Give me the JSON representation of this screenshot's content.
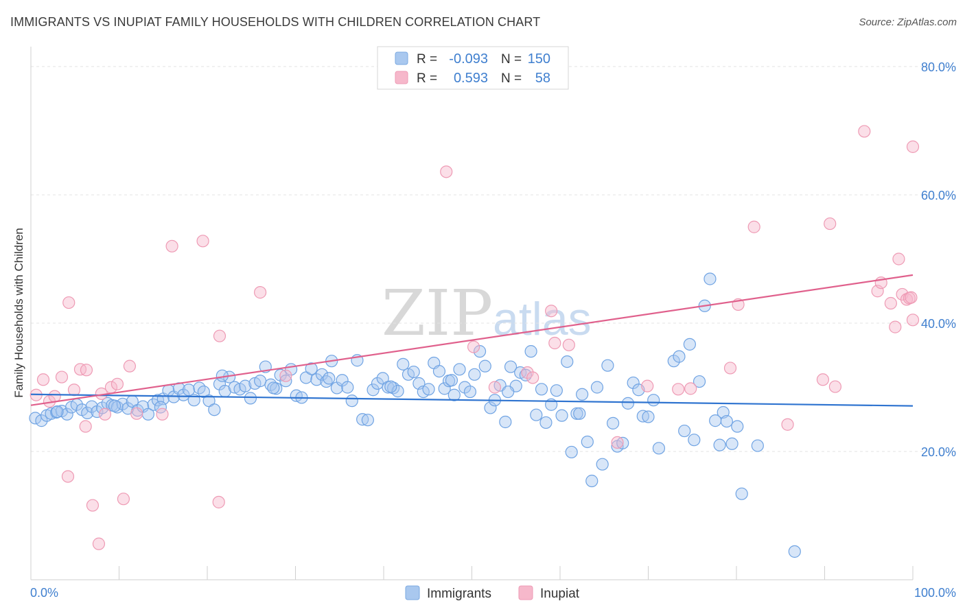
{
  "header": {
    "title": "IMMIGRANTS VS INUPIAT FAMILY HOUSEHOLDS WITH CHILDREN CORRELATION CHART",
    "source": "Source: ZipAtlas.com"
  },
  "watermark": {
    "zip": "ZIP",
    "atlas": "atlas"
  },
  "legend": {
    "rows": [
      {
        "r_label": "R =",
        "r_value": "-0.093",
        "n_label": "N =",
        "n_value": "150",
        "color": "#a9c8ef"
      },
      {
        "r_label": "R =",
        "r_value": "0.593",
        "n_label": "N =",
        "n_value": "58",
        "color": "#f6b8cb"
      }
    ]
  },
  "bottom_legend": [
    {
      "label": "Immigrants",
      "color": "#a9c8ef"
    },
    {
      "label": "Inupiat",
      "color": "#f6b8cb"
    }
  ],
  "chart_data": {
    "type": "scatter",
    "title": "IMMIGRANTS VS INUPIAT FAMILY HOUSEHOLDS WITH CHILDREN CORRELATION CHART",
    "xlabel": "",
    "ylabel": "Family Households with Children",
    "xlim": [
      0,
      100
    ],
    "ylim": [
      0,
      80
    ],
    "x_tick_labels": [
      "0.0%",
      "100.0%"
    ],
    "y_ticks": [
      20,
      40,
      60,
      80
    ],
    "y_tick_labels": [
      "20.0%",
      "40.0%",
      "60.0%",
      "80.0%"
    ],
    "grid": true,
    "legend_position": "top-center",
    "series": [
      {
        "name": "Immigrants",
        "color": "#6fa3e3",
        "trend": {
          "x": [
            0,
            100
          ],
          "y": [
            28.9,
            27.1
          ]
        },
        "points": [
          [
            0.5,
            25.2
          ],
          [
            1.2,
            24.8
          ],
          [
            1.8,
            25.6
          ],
          [
            2.3,
            25.9
          ],
          [
            2.9,
            26.1
          ],
          [
            3.5,
            26.3
          ],
          [
            4.1,
            25.8
          ],
          [
            4.6,
            26.9
          ],
          [
            5.2,
            27.3
          ],
          [
            5.8,
            26.5
          ],
          [
            6.4,
            26.0
          ],
          [
            6.9,
            27.0
          ],
          [
            7.5,
            26.2
          ],
          [
            8.1,
            26.8
          ],
          [
            8.7,
            27.5
          ],
          [
            9.2,
            27.2
          ],
          [
            9.8,
            26.9
          ],
          [
            10.4,
            27.4
          ],
          [
            11.0,
            26.7
          ],
          [
            11.5,
            27.8
          ],
          [
            12.1,
            26.4
          ],
          [
            12.7,
            27.0
          ],
          [
            13.3,
            25.8
          ],
          [
            13.9,
            27.3
          ],
          [
            14.4,
            28.0
          ],
          [
            15.0,
            28.2
          ],
          [
            15.6,
            29.5
          ],
          [
            16.2,
            28.5
          ],
          [
            16.8,
            29.8
          ],
          [
            17.3,
            28.8
          ],
          [
            17.9,
            29.6
          ],
          [
            18.5,
            28.0
          ],
          [
            19.1,
            29.9
          ],
          [
            19.6,
            29.3
          ],
          [
            20.2,
            27.9
          ],
          [
            20.8,
            26.5
          ],
          [
            21.4,
            30.5
          ],
          [
            22.0,
            29.4
          ],
          [
            22.5,
            31.6
          ],
          [
            23.1,
            30.0
          ],
          [
            23.7,
            29.7
          ],
          [
            24.3,
            30.2
          ],
          [
            24.9,
            28.3
          ],
          [
            25.4,
            30.6
          ],
          [
            26.0,
            31.0
          ],
          [
            26.6,
            33.2
          ],
          [
            27.2,
            30.4
          ],
          [
            27.8,
            29.8
          ],
          [
            28.3,
            31.9
          ],
          [
            28.9,
            31.0
          ],
          [
            29.5,
            32.8
          ],
          [
            30.1,
            28.7
          ],
          [
            30.7,
            28.4
          ],
          [
            31.2,
            31.5
          ],
          [
            31.8,
            32.9
          ],
          [
            32.4,
            31.2
          ],
          [
            33.0,
            32.0
          ],
          [
            33.5,
            30.9
          ],
          [
            34.1,
            34.1
          ],
          [
            34.7,
            29.9
          ],
          [
            35.3,
            31.1
          ],
          [
            35.9,
            30.0
          ],
          [
            36.4,
            27.9
          ],
          [
            37.0,
            34.2
          ],
          [
            37.6,
            25.0
          ],
          [
            38.2,
            24.9
          ],
          [
            38.8,
            29.6
          ],
          [
            39.3,
            30.6
          ],
          [
            39.9,
            31.4
          ],
          [
            40.5,
            30.0
          ],
          [
            41.1,
            29.9
          ],
          [
            41.6,
            29.4
          ],
          [
            42.2,
            33.6
          ],
          [
            42.8,
            32.0
          ],
          [
            43.4,
            32.4
          ],
          [
            44.0,
            30.6
          ],
          [
            44.5,
            29.3
          ],
          [
            45.1,
            29.7
          ],
          [
            45.7,
            33.8
          ],
          [
            46.3,
            32.5
          ],
          [
            46.9,
            29.8
          ],
          [
            47.4,
            31.0
          ],
          [
            48.0,
            28.8
          ],
          [
            48.6,
            32.8
          ],
          [
            49.2,
            30.0
          ],
          [
            49.8,
            29.3
          ],
          [
            50.3,
            32.0
          ],
          [
            50.9,
            35.6
          ],
          [
            51.5,
            33.3
          ],
          [
            52.1,
            26.8
          ],
          [
            52.6,
            28.0
          ],
          [
            53.2,
            30.3
          ],
          [
            53.8,
            24.6
          ],
          [
            54.4,
            33.2
          ],
          [
            55.0,
            30.2
          ],
          [
            55.5,
            32.3
          ],
          [
            56.1,
            31.9
          ],
          [
            56.7,
            35.6
          ],
          [
            57.3,
            25.7
          ],
          [
            57.9,
            29.7
          ],
          [
            58.4,
            24.5
          ],
          [
            59.0,
            27.3
          ],
          [
            59.6,
            29.5
          ],
          [
            60.2,
            25.6
          ],
          [
            60.8,
            34.0
          ],
          [
            61.3,
            19.9
          ],
          [
            61.9,
            25.9
          ],
          [
            62.5,
            28.9
          ],
          [
            63.1,
            21.5
          ],
          [
            63.6,
            15.4
          ],
          [
            64.2,
            30.0
          ],
          [
            64.8,
            18.0
          ],
          [
            65.4,
            33.4
          ],
          [
            66.0,
            24.4
          ],
          [
            66.5,
            20.8
          ],
          [
            67.1,
            21.3
          ],
          [
            67.7,
            27.5
          ],
          [
            68.3,
            30.7
          ],
          [
            68.9,
            29.6
          ],
          [
            69.4,
            25.5
          ],
          [
            70.0,
            25.4
          ],
          [
            70.6,
            28.0
          ],
          [
            71.2,
            20.5
          ],
          [
            72.9,
            34.1
          ],
          [
            73.5,
            34.8
          ],
          [
            74.1,
            23.2
          ],
          [
            74.7,
            36.7
          ],
          [
            75.2,
            21.8
          ],
          [
            75.8,
            30.9
          ],
          [
            76.4,
            42.7
          ],
          [
            77.6,
            24.8
          ],
          [
            78.1,
            21.0
          ],
          [
            78.5,
            26.1
          ],
          [
            78.9,
            24.7
          ],
          [
            79.5,
            21.2
          ],
          [
            80.1,
            23.9
          ],
          [
            80.6,
            13.4
          ],
          [
            82.4,
            20.9
          ],
          [
            86.6,
            4.4
          ],
          [
            77.0,
            46.9
          ],
          [
            3.0,
            26.2
          ],
          [
            9.5,
            27.1
          ],
          [
            14.7,
            26.9
          ],
          [
            21.7,
            31.8
          ],
          [
            27.5,
            29.9
          ],
          [
            33.8,
            31.4
          ],
          [
            40.8,
            30.1
          ],
          [
            47.7,
            31.1
          ],
          [
            54.1,
            29.3
          ],
          [
            62.2,
            25.9
          ]
        ]
      },
      {
        "name": "Inupiat",
        "color": "#f09bb6",
        "trend": {
          "x": [
            0,
            100
          ],
          "y": [
            27.2,
            47.5
          ]
        },
        "points": [
          [
            0.6,
            28.8
          ],
          [
            1.4,
            31.2
          ],
          [
            2.1,
            27.8
          ],
          [
            2.7,
            28.6
          ],
          [
            3.5,
            31.6
          ],
          [
            4.2,
            16.1
          ],
          [
            4.9,
            29.6
          ],
          [
            5.6,
            32.8
          ],
          [
            6.2,
            23.9
          ],
          [
            7.0,
            11.6
          ],
          [
            7.7,
            5.6
          ],
          [
            8.4,
            25.8
          ],
          [
            9.1,
            30.0
          ],
          [
            9.8,
            30.5
          ],
          [
            10.5,
            12.6
          ],
          [
            11.2,
            33.3
          ],
          [
            12.0,
            25.9
          ],
          [
            4.3,
            43.2
          ],
          [
            6.3,
            32.7
          ],
          [
            8.0,
            29.0
          ],
          [
            14.9,
            25.8
          ],
          [
            16.0,
            52.0
          ],
          [
            19.5,
            52.8
          ],
          [
            21.3,
            12.1
          ],
          [
            21.4,
            38.0
          ],
          [
            26.0,
            44.8
          ],
          [
            28.9,
            31.8
          ],
          [
            47.1,
            63.6
          ],
          [
            50.2,
            36.3
          ],
          [
            52.6,
            30.0
          ],
          [
            56.3,
            32.3
          ],
          [
            56.9,
            31.5
          ],
          [
            59.0,
            41.9
          ],
          [
            59.4,
            36.9
          ],
          [
            61.0,
            36.6
          ],
          [
            66.5,
            21.4
          ],
          [
            69.9,
            30.2
          ],
          [
            73.4,
            29.7
          ],
          [
            74.8,
            29.8
          ],
          [
            79.3,
            33.0
          ],
          [
            80.2,
            42.9
          ],
          [
            82.0,
            55.0
          ],
          [
            85.8,
            24.2
          ],
          [
            89.8,
            31.2
          ],
          [
            90.6,
            55.5
          ],
          [
            91.2,
            30.1
          ],
          [
            94.5,
            69.9
          ],
          [
            96.0,
            45.0
          ],
          [
            96.4,
            46.3
          ],
          [
            97.5,
            43.1
          ],
          [
            98.0,
            39.4
          ],
          [
            98.4,
            50.0
          ],
          [
            98.8,
            44.5
          ],
          [
            99.3,
            43.7
          ],
          [
            99.6,
            43.9
          ],
          [
            99.8,
            44.0
          ],
          [
            100.0,
            67.5
          ],
          [
            100.0,
            40.5
          ]
        ]
      }
    ]
  }
}
